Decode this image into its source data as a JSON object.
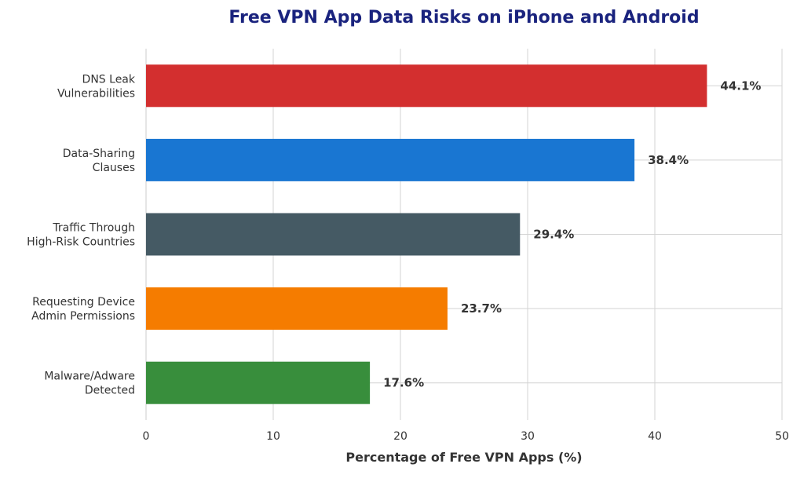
{
  "chart_data": {
    "type": "bar",
    "orientation": "horizontal",
    "title": "Free VPN App Data Risks on iPhone and Android",
    "xlabel": "Percentage of Free VPN Apps (%)",
    "ylabel": "",
    "xlim": [
      0,
      50
    ],
    "x_ticks": [
      "0",
      "10",
      "20",
      "30",
      "40",
      "50"
    ],
    "grid": true,
    "categories": [
      [
        "DNS Leak",
        "Vulnerabilities"
      ],
      [
        "Data-Sharing",
        "Clauses"
      ],
      [
        "Traffic Through",
        "High-Risk Countries"
      ],
      [
        "Requesting Device",
        "Admin Permissions"
      ],
      [
        "Malware/Adware",
        "Detected"
      ]
    ],
    "values": [
      44.1,
      38.4,
      29.4,
      23.7,
      17.6
    ],
    "value_labels": [
      "44.1%",
      "38.4%",
      "29.4%",
      "23.7%",
      "17.6%"
    ],
    "colors": [
      "#d32f2f",
      "#1976d2",
      "#455a64",
      "#f57c00",
      "#388e3c"
    ]
  }
}
